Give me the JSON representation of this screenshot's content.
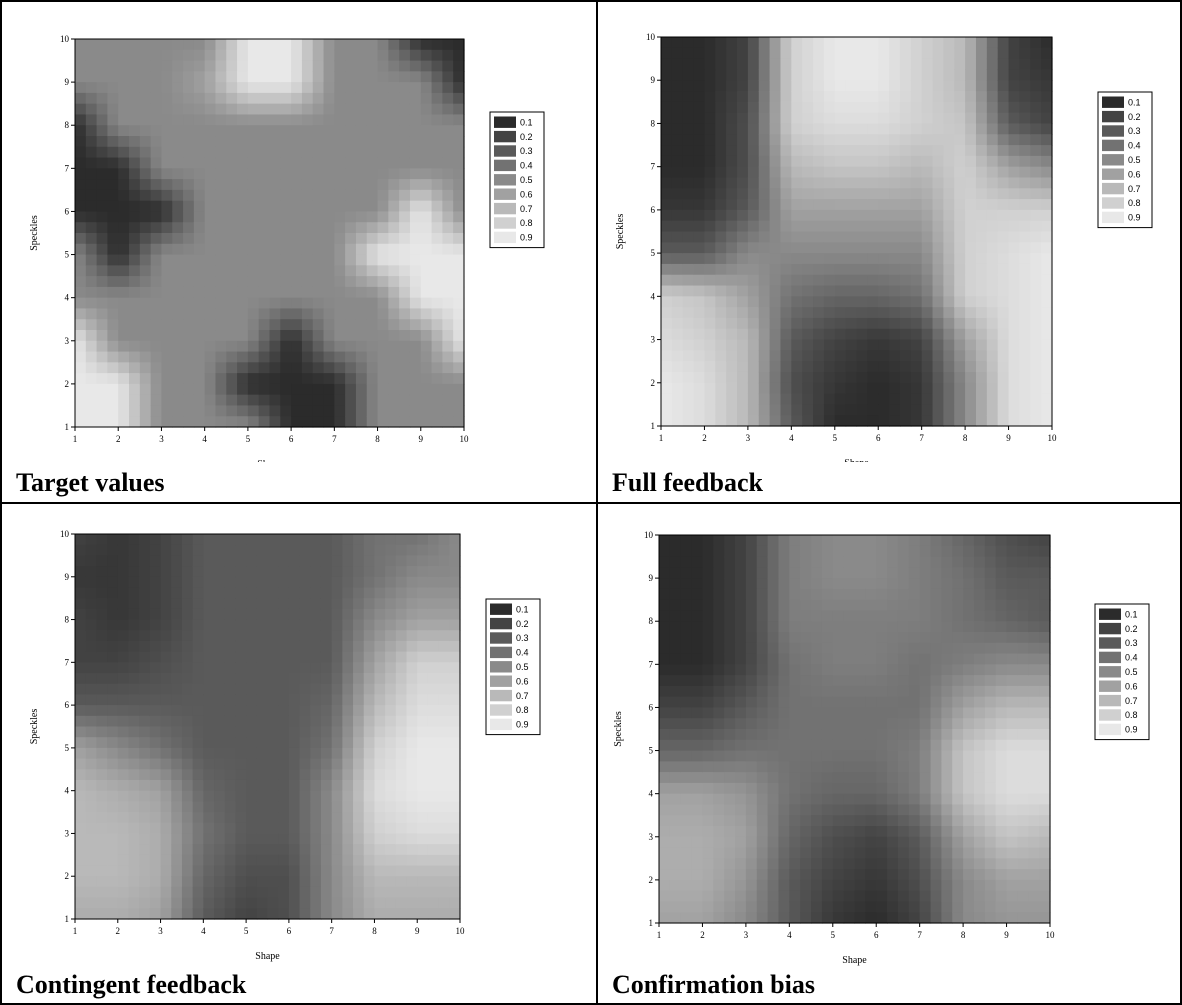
{
  "chart_data": [
    {
      "type": "heatmap",
      "title": "Target values",
      "xlabel": "Shape",
      "ylabel": "Speckles",
      "x_ticks": [
        1,
        2,
        3,
        4,
        5,
        6,
        7,
        8,
        9,
        10
      ],
      "y_ticks": [
        1,
        2,
        3,
        4,
        5,
        6,
        7,
        8,
        9,
        10
      ],
      "xlim": [
        1,
        10
      ],
      "ylim": [
        1,
        10
      ],
      "legend_levels": [
        "0.1",
        "0.2",
        "0.3",
        "0.4",
        "0.5",
        "0.6",
        "0.7",
        "0.8",
        "0.9"
      ],
      "legend_position": "right",
      "z": [
        [
          0.5,
          0.5,
          0.5,
          0.5,
          0.9,
          0.9,
          0.5,
          0.5,
          0.1,
          0.1
        ],
        [
          0.5,
          0.5,
          0.5,
          0.6,
          0.9,
          0.9,
          0.5,
          0.5,
          0.5,
          0.1
        ],
        [
          0.1,
          0.5,
          0.5,
          0.5,
          0.5,
          0.5,
          0.5,
          0.5,
          0.5,
          0.5
        ],
        [
          0.1,
          0.1,
          0.5,
          0.5,
          0.5,
          0.5,
          0.5,
          0.5,
          0.5,
          0.5
        ],
        [
          0.1,
          0.1,
          0.1,
          0.5,
          0.5,
          0.5,
          0.5,
          0.5,
          0.9,
          0.5
        ],
        [
          0.5,
          0.1,
          0.5,
          0.5,
          0.5,
          0.5,
          0.5,
          0.9,
          0.9,
          0.9
        ],
        [
          0.5,
          0.5,
          0.5,
          0.5,
          0.5,
          0.5,
          0.5,
          0.5,
          0.9,
          0.9
        ],
        [
          0.9,
          0.5,
          0.5,
          0.5,
          0.5,
          0.1,
          0.5,
          0.5,
          0.5,
          0.9
        ],
        [
          0.9,
          0.9,
          0.5,
          0.5,
          0.1,
          0.1,
          0.1,
          0.5,
          0.5,
          0.5
        ],
        [
          0.9,
          0.9,
          0.5,
          0.5,
          0.5,
          0.1,
          0.1,
          0.5,
          0.5,
          0.5
        ]
      ]
    },
    {
      "type": "heatmap",
      "title": "Full feedback",
      "xlabel": "Shape",
      "ylabel": "Speckles",
      "x_ticks": [
        1,
        2,
        3,
        4,
        5,
        6,
        7,
        8,
        9,
        10
      ],
      "y_ticks": [
        1,
        2,
        3,
        4,
        5,
        6,
        7,
        8,
        9,
        10
      ],
      "xlim": [
        1,
        10
      ],
      "ylim": [
        1,
        10
      ],
      "legend_levels": [
        "0.1",
        "0.2",
        "0.3",
        "0.4",
        "0.5",
        "0.6",
        "0.7",
        "0.8",
        "0.9"
      ],
      "legend_position": "right",
      "z": [
        [
          0.1,
          0.1,
          0.2,
          0.8,
          0.9,
          0.9,
          0.8,
          0.7,
          0.2,
          0.1
        ],
        [
          0.1,
          0.1,
          0.2,
          0.8,
          0.9,
          0.9,
          0.8,
          0.7,
          0.2,
          0.15
        ],
        [
          0.1,
          0.1,
          0.25,
          0.8,
          0.85,
          0.85,
          0.8,
          0.75,
          0.3,
          0.2
        ],
        [
          0.1,
          0.1,
          0.25,
          0.7,
          0.75,
          0.75,
          0.7,
          0.8,
          0.6,
          0.5
        ],
        [
          0.15,
          0.15,
          0.3,
          0.6,
          0.6,
          0.6,
          0.6,
          0.8,
          0.8,
          0.8
        ],
        [
          0.3,
          0.3,
          0.5,
          0.5,
          0.5,
          0.5,
          0.5,
          0.8,
          0.85,
          0.9
        ],
        [
          0.8,
          0.75,
          0.6,
          0.4,
          0.35,
          0.35,
          0.4,
          0.8,
          0.85,
          0.9
        ],
        [
          0.85,
          0.8,
          0.7,
          0.3,
          0.2,
          0.15,
          0.2,
          0.6,
          0.85,
          0.9
        ],
        [
          0.9,
          0.85,
          0.7,
          0.25,
          0.15,
          0.1,
          0.15,
          0.5,
          0.85,
          0.9
        ],
        [
          0.9,
          0.85,
          0.7,
          0.3,
          0.1,
          0.1,
          0.15,
          0.5,
          0.85,
          0.9
        ]
      ]
    },
    {
      "type": "heatmap",
      "title": "Contingent feedback",
      "xlabel": "Shape",
      "ylabel": "Speckles",
      "x_ticks": [
        1,
        2,
        3,
        4,
        5,
        6,
        7,
        8,
        9,
        10
      ],
      "y_ticks": [
        1,
        2,
        3,
        4,
        5,
        6,
        7,
        8,
        9,
        10
      ],
      "xlim": [
        1,
        10
      ],
      "ylim": [
        1,
        10
      ],
      "legend_levels": [
        "0.1",
        "0.2",
        "0.3",
        "0.4",
        "0.5",
        "0.6",
        "0.7",
        "0.8",
        "0.9"
      ],
      "legend_position": "right",
      "z": [
        [
          0.2,
          0.15,
          0.2,
          0.3,
          0.3,
          0.3,
          0.3,
          0.4,
          0.4,
          0.5
        ],
        [
          0.15,
          0.15,
          0.2,
          0.3,
          0.3,
          0.3,
          0.3,
          0.4,
          0.5,
          0.5
        ],
        [
          0.2,
          0.15,
          0.2,
          0.3,
          0.3,
          0.3,
          0.3,
          0.5,
          0.6,
          0.6
        ],
        [
          0.2,
          0.2,
          0.25,
          0.3,
          0.3,
          0.3,
          0.3,
          0.6,
          0.8,
          0.8
        ],
        [
          0.3,
          0.3,
          0.3,
          0.3,
          0.3,
          0.3,
          0.35,
          0.7,
          0.85,
          0.85
        ],
        [
          0.6,
          0.5,
          0.4,
          0.3,
          0.3,
          0.3,
          0.4,
          0.8,
          0.9,
          0.9
        ],
        [
          0.7,
          0.65,
          0.6,
          0.35,
          0.3,
          0.3,
          0.5,
          0.85,
          0.9,
          0.9
        ],
        [
          0.7,
          0.7,
          0.65,
          0.4,
          0.3,
          0.3,
          0.5,
          0.8,
          0.85,
          0.85
        ],
        [
          0.7,
          0.7,
          0.65,
          0.35,
          0.25,
          0.25,
          0.5,
          0.7,
          0.7,
          0.7
        ],
        [
          0.65,
          0.65,
          0.6,
          0.3,
          0.2,
          0.25,
          0.5,
          0.65,
          0.65,
          0.65
        ]
      ]
    },
    {
      "type": "heatmap",
      "title": "Confirmation bias",
      "xlabel": "Shape",
      "ylabel": "Speckles",
      "x_ticks": [
        1,
        2,
        3,
        4,
        5,
        6,
        7,
        8,
        9,
        10
      ],
      "y_ticks": [
        1,
        2,
        3,
        4,
        5,
        6,
        7,
        8,
        9,
        10
      ],
      "xlim": [
        1,
        10
      ],
      "ylim": [
        1,
        10
      ],
      "legend_levels": [
        "0.1",
        "0.2",
        "0.3",
        "0.4",
        "0.5",
        "0.6",
        "0.7",
        "0.8",
        "0.9"
      ],
      "legend_position": "right",
      "z": [
        [
          0.1,
          0.1,
          0.2,
          0.45,
          0.5,
          0.5,
          0.45,
          0.35,
          0.25,
          0.2
        ],
        [
          0.1,
          0.1,
          0.2,
          0.45,
          0.5,
          0.5,
          0.45,
          0.4,
          0.3,
          0.3
        ],
        [
          0.1,
          0.1,
          0.2,
          0.45,
          0.45,
          0.45,
          0.45,
          0.4,
          0.35,
          0.3
        ],
        [
          0.1,
          0.1,
          0.2,
          0.4,
          0.45,
          0.45,
          0.4,
          0.45,
          0.5,
          0.5
        ],
        [
          0.2,
          0.2,
          0.3,
          0.4,
          0.4,
          0.4,
          0.4,
          0.6,
          0.7,
          0.7
        ],
        [
          0.35,
          0.35,
          0.4,
          0.4,
          0.4,
          0.4,
          0.45,
          0.75,
          0.85,
          0.85
        ],
        [
          0.6,
          0.6,
          0.55,
          0.4,
          0.35,
          0.35,
          0.45,
          0.75,
          0.85,
          0.85
        ],
        [
          0.65,
          0.65,
          0.6,
          0.35,
          0.25,
          0.2,
          0.3,
          0.6,
          0.75,
          0.7
        ],
        [
          0.65,
          0.65,
          0.55,
          0.3,
          0.2,
          0.15,
          0.25,
          0.5,
          0.6,
          0.6
        ],
        [
          0.6,
          0.6,
          0.5,
          0.3,
          0.15,
          0.1,
          0.2,
          0.5,
          0.55,
          0.55
        ]
      ]
    }
  ]
}
